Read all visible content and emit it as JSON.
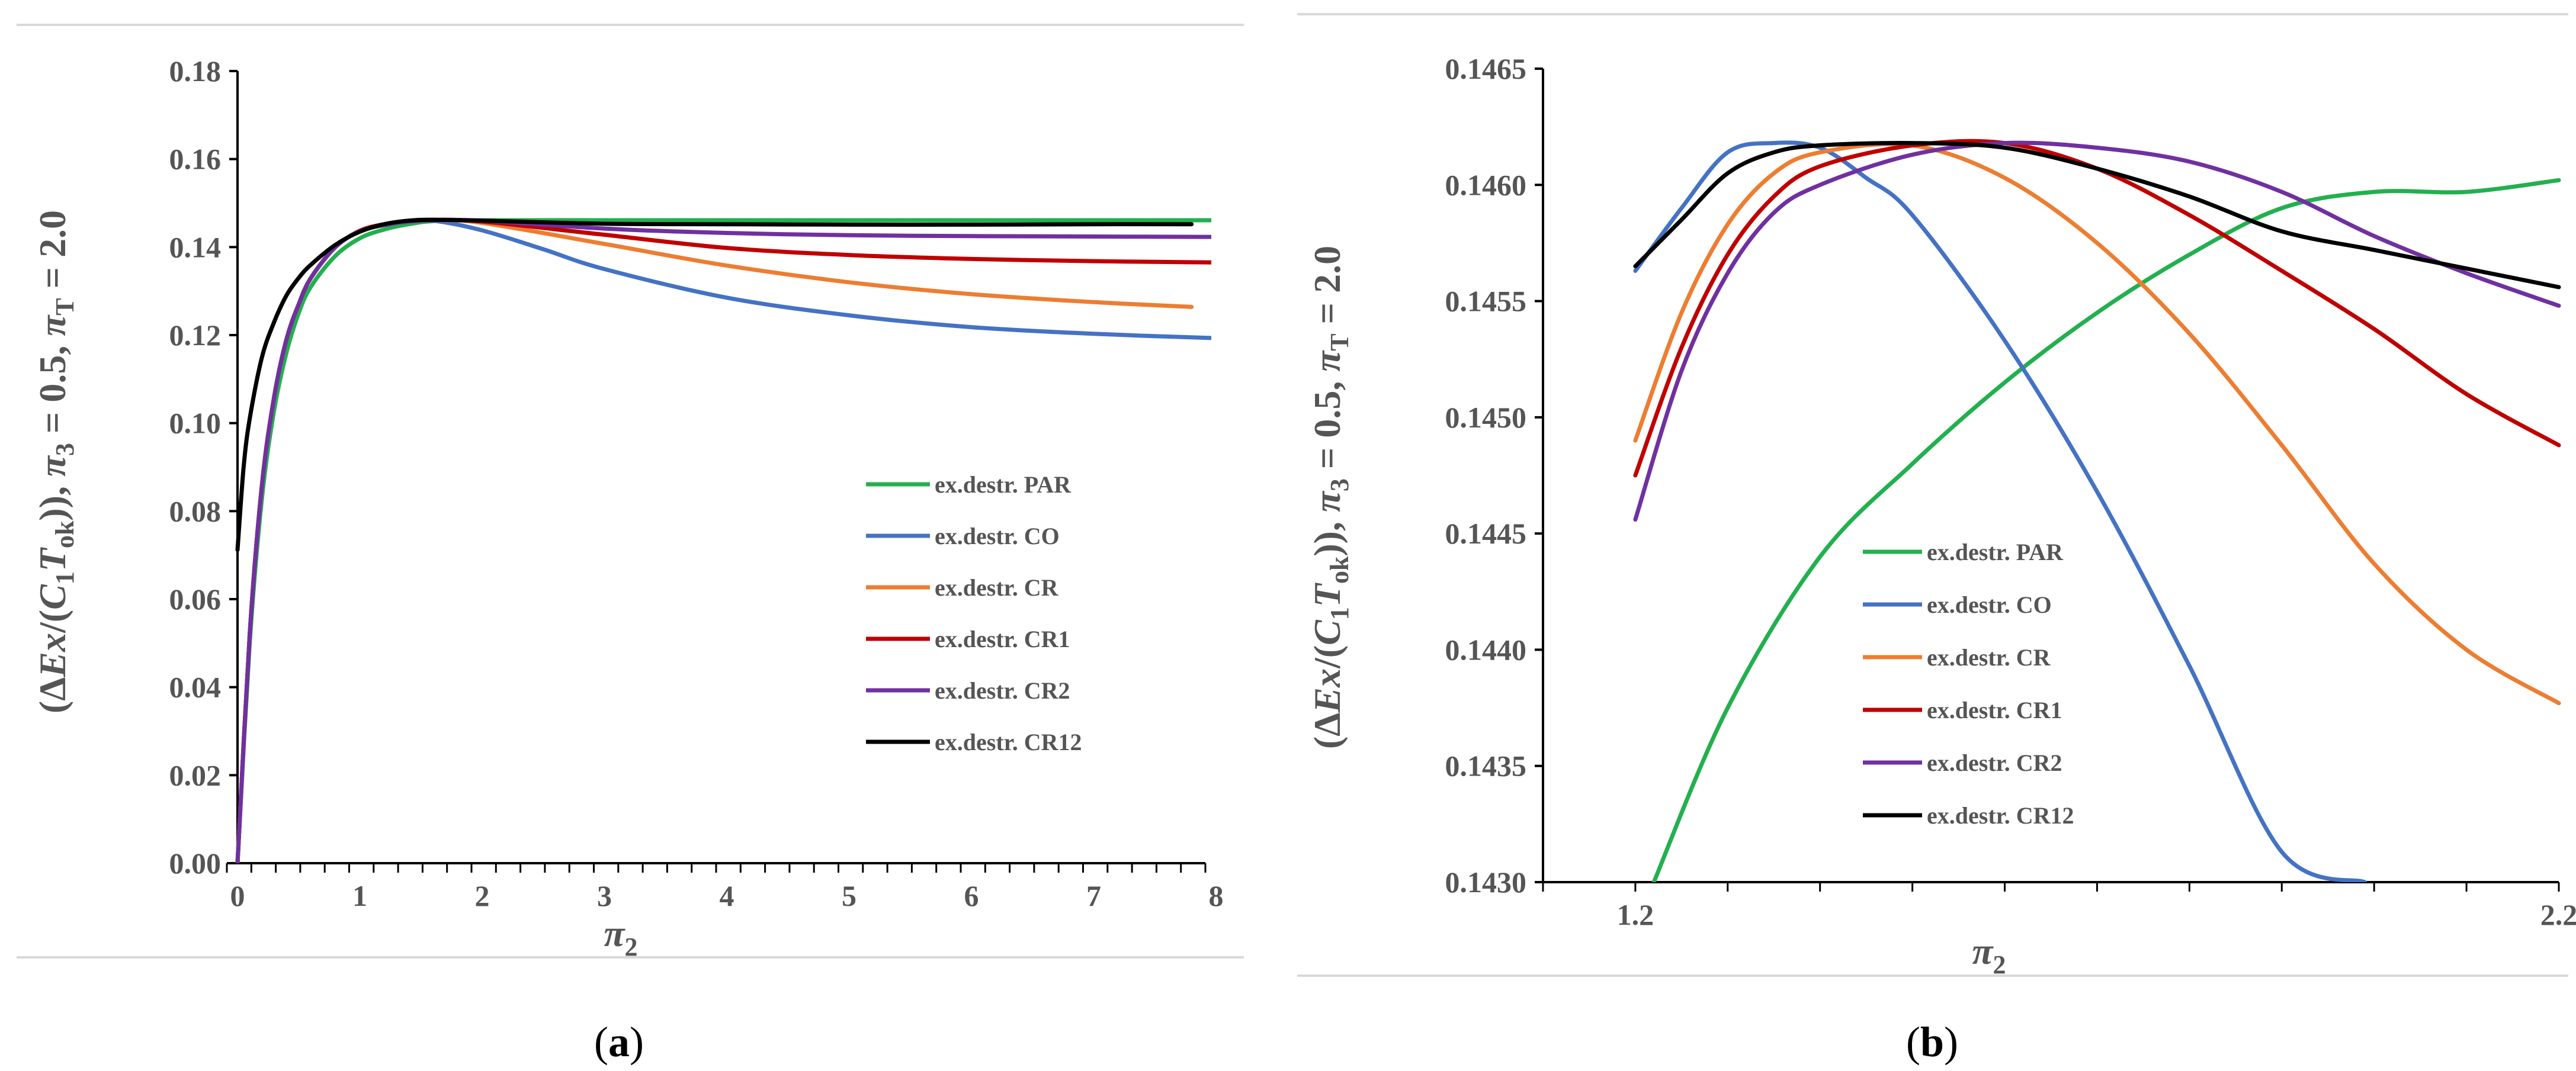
{
  "colors": {
    "PAR": "#22b04e",
    "CO": "#4472c4",
    "CR": "#ed7d31",
    "CR1": "#c00000",
    "CR2": "#7030a0",
    "CR12": "#000000"
  },
  "chart_data": [
    {
      "panel": "a",
      "type": "line",
      "caption_left": "(",
      "caption_letter": "a",
      "caption_right": ")",
      "xlabel": "π",
      "xlabel_sub": "2",
      "ylabel": "(ΔEx/(C₁T₀ₖ)), π₃ = 0.5, π_T = 2.0",
      "ylabel_parts": {
        "open": "(Δ",
        "ex": "Ex",
        "mid": "/(",
        "c": "C",
        "c_sub": "1",
        "t": "T",
        "t_sub": "ok",
        "close": ")), ",
        "pi3": "π",
        "pi3_sub": "3",
        "pi3_val": " = 0.5, ",
        "pit": "π",
        "pit_sub": "T",
        "pit_val": " = 2.0"
      },
      "xlim": [
        0,
        8
      ],
      "ylim": [
        0,
        0.18
      ],
      "xticks": [
        "0",
        "1",
        "2",
        "3",
        "4",
        "5",
        "6",
        "7",
        "8"
      ],
      "yticks": [
        "0.00",
        "0.02",
        "0.04",
        "0.06",
        "0.08",
        "0.10",
        "0.12",
        "0.14",
        "0.16",
        "0.18"
      ],
      "legend": [
        "ex.destr. PAR",
        "ex.destr. CO",
        "ex.destr. CR",
        "ex.destr. CR1",
        "ex.destr. CR2",
        "ex.destr. CR12"
      ],
      "series": [
        {
          "name": "ex.destr. PAR",
          "key": "PAR",
          "x": [
            0,
            0.1,
            0.2,
            0.3,
            0.4,
            0.5,
            0.6,
            0.8,
            1.0,
            1.2,
            1.4,
            1.6,
            2.0,
            3.0,
            4.0,
            5.0,
            6.0,
            7.0,
            8.0
          ],
          "y": [
            0.0,
            0.05,
            0.083,
            0.103,
            0.116,
            0.125,
            0.131,
            0.138,
            0.142,
            0.144,
            0.1452,
            0.1459,
            0.1461,
            0.1461,
            0.1461,
            0.1461,
            0.1461,
            0.1461,
            0.1461
          ]
        },
        {
          "name": "ex.destr. CO",
          "key": "CO",
          "x": [
            0,
            0.1,
            0.2,
            0.3,
            0.4,
            0.5,
            0.6,
            0.8,
            1.0,
            1.2,
            1.4,
            1.6,
            2.0,
            2.5,
            3.0,
            4.0,
            5.0,
            6.0,
            7.0,
            8.0
          ],
          "y": [
            0.0,
            0.052,
            0.086,
            0.106,
            0.119,
            0.127,
            0.133,
            0.14,
            0.1437,
            0.1452,
            0.1459,
            0.146,
            0.1438,
            0.1395,
            0.135,
            0.1285,
            0.1245,
            0.1218,
            0.1203,
            0.1193
          ]
        },
        {
          "name": "ex.destr. CR",
          "key": "CR",
          "x": [
            0,
            0.1,
            0.2,
            0.3,
            0.4,
            0.5,
            0.6,
            0.8,
            1.0,
            1.2,
            1.4,
            1.6,
            2.0,
            3.0,
            4.0,
            5.0,
            6.0,
            7.0,
            7.8
          ],
          "y": [
            0.0,
            0.052,
            0.086,
            0.106,
            0.119,
            0.127,
            0.133,
            0.14,
            0.1437,
            0.1452,
            0.146,
            0.1461,
            0.1455,
            0.1407,
            0.1358,
            0.132,
            0.1293,
            0.1275,
            0.1264
          ]
        },
        {
          "name": "ex.destr. CR1",
          "key": "CR1",
          "x": [
            0,
            0.1,
            0.2,
            0.3,
            0.4,
            0.5,
            0.6,
            0.8,
            1.0,
            1.2,
            1.4,
            1.6,
            2.0,
            3.0,
            4.0,
            5.0,
            6.0,
            7.0,
            8.0
          ],
          "y": [
            0.0,
            0.052,
            0.086,
            0.106,
            0.119,
            0.127,
            0.133,
            0.14,
            0.1437,
            0.1452,
            0.146,
            0.1462,
            0.1458,
            0.1428,
            0.1398,
            0.1382,
            0.1373,
            0.1368,
            0.1365
          ]
        },
        {
          "name": "ex.destr. CR2",
          "key": "CR2",
          "x": [
            0,
            0.1,
            0.2,
            0.3,
            0.4,
            0.5,
            0.6,
            0.8,
            1.0,
            1.2,
            1.4,
            1.6,
            2.0,
            3.0,
            4.0,
            5.0,
            6.0,
            7.0,
            8.0
          ],
          "y": [
            0.0,
            0.052,
            0.086,
            0.106,
            0.119,
            0.127,
            0.133,
            0.14,
            0.1436,
            0.145,
            0.1458,
            0.1461,
            0.146,
            0.1442,
            0.1432,
            0.1427,
            0.1425,
            0.1424,
            0.1423
          ]
        },
        {
          "name": "ex.destr. CR12",
          "key": "CR12",
          "x": [
            0,
            0.05,
            0.1,
            0.2,
            0.3,
            0.4,
            0.5,
            0.6,
            0.8,
            1.0,
            1.2,
            1.4,
            1.6,
            2.0,
            3.0,
            4.0,
            5.0,
            6.0,
            7.0,
            7.8
          ],
          "y": [
            0.0712,
            0.09,
            0.101,
            0.115,
            0.123,
            0.129,
            0.133,
            0.136,
            0.1405,
            0.1435,
            0.1452,
            0.146,
            0.1462,
            0.146,
            0.1453,
            0.1452,
            0.1451,
            0.1451,
            0.1452,
            0.1452
          ]
        }
      ]
    },
    {
      "panel": "b",
      "type": "line",
      "caption_left": "(",
      "caption_letter": "b",
      "caption_right": ")",
      "xlabel": "π",
      "xlabel_sub": "2",
      "ylabel": "(ΔEx/(C₁T₀ₖ)), π₃ = 0.5, π_T = 2.0",
      "ylabel_parts": {
        "open": "(Δ",
        "ex": "Ex",
        "mid": "/(",
        "c": "C",
        "c_sub": "1",
        "t": "T",
        "t_sub": "ok",
        "close": ")), ",
        "pi3": "π",
        "pi3_sub": "3",
        "pi3_val": " = 0.5, ",
        "pit": "π",
        "pit_sub": "T",
        "pit_val": " = 2.0"
      },
      "xlim": [
        1.1,
        2.2
      ],
      "ylim": [
        0.143,
        0.1465
      ],
      "xticks": [
        "1.2",
        "2.2"
      ],
      "yticks": [
        "0.1430",
        "0.1435",
        "0.1440",
        "0.1445",
        "0.1450",
        "0.1455",
        "0.1460",
        "0.1465"
      ],
      "legend": [
        "ex.destr. PAR",
        "ex.destr. CO",
        "ex.destr. CR",
        "ex.destr. CR1",
        "ex.destr. CR2",
        "ex.destr. CR12"
      ],
      "series": [
        {
          "name": "ex.destr. PAR",
          "key": "PAR",
          "x": [
            1.22,
            1.3,
            1.4,
            1.5,
            1.6,
            1.7,
            1.8,
            1.9,
            2.0,
            2.1,
            2.2
          ],
          "y": [
            0.143,
            0.14375,
            0.1444,
            0.1448,
            0.14515,
            0.14545,
            0.1457,
            0.1459,
            0.14597,
            0.14597,
            0.14602
          ]
        },
        {
          "name": "ex.destr. CO",
          "key": "CO",
          "x": [
            1.2,
            1.25,
            1.3,
            1.35,
            1.4,
            1.45,
            1.5,
            1.6,
            1.7,
            1.8,
            1.9,
            1.99
          ],
          "y": [
            0.14563,
            0.1459,
            0.14614,
            0.14618,
            0.14616,
            0.14603,
            0.14587,
            0.14533,
            0.14468,
            0.14393,
            0.14313,
            0.143
          ]
        },
        {
          "name": "ex.destr. CR",
          "key": "CR",
          "x": [
            1.2,
            1.25,
            1.3,
            1.35,
            1.4,
            1.5,
            1.6,
            1.7,
            1.8,
            1.9,
            2.0,
            2.1,
            2.2
          ],
          "y": [
            0.1449,
            0.14545,
            0.14583,
            0.14605,
            0.14614,
            0.14617,
            0.14603,
            0.14575,
            0.14536,
            0.14488,
            0.14437,
            0.144,
            0.14377
          ]
        },
        {
          "name": "ex.destr. CR1",
          "key": "CR1",
          "x": [
            1.2,
            1.25,
            1.3,
            1.35,
            1.4,
            1.5,
            1.6,
            1.7,
            1.8,
            1.9,
            2.0,
            2.1,
            2.2
          ],
          "y": [
            0.14475,
            0.1453,
            0.1457,
            0.14595,
            0.14608,
            0.14617,
            0.14618,
            0.14607,
            0.14587,
            0.14563,
            0.14538,
            0.1451,
            0.14488
          ]
        },
        {
          "name": "ex.destr. CR2",
          "key": "CR2",
          "x": [
            1.2,
            1.25,
            1.3,
            1.35,
            1.4,
            1.5,
            1.6,
            1.7,
            1.8,
            1.9,
            2.0,
            2.1,
            2.2
          ],
          "y": [
            0.14456,
            0.1452,
            0.14562,
            0.14588,
            0.146,
            0.14613,
            0.14618,
            0.14616,
            0.1461,
            0.14597,
            0.14578,
            0.14562,
            0.14548
          ]
        },
        {
          "name": "ex.destr. CR12",
          "key": "CR12",
          "x": [
            1.2,
            1.25,
            1.3,
            1.35,
            1.4,
            1.5,
            1.6,
            1.7,
            1.8,
            1.9,
            2.0,
            2.1,
            2.2
          ],
          "y": [
            0.14565,
            0.14585,
            0.14605,
            0.14614,
            0.14617,
            0.14618,
            0.14616,
            0.14607,
            0.14595,
            0.1458,
            0.14572,
            0.14564,
            0.14556
          ]
        }
      ]
    }
  ]
}
